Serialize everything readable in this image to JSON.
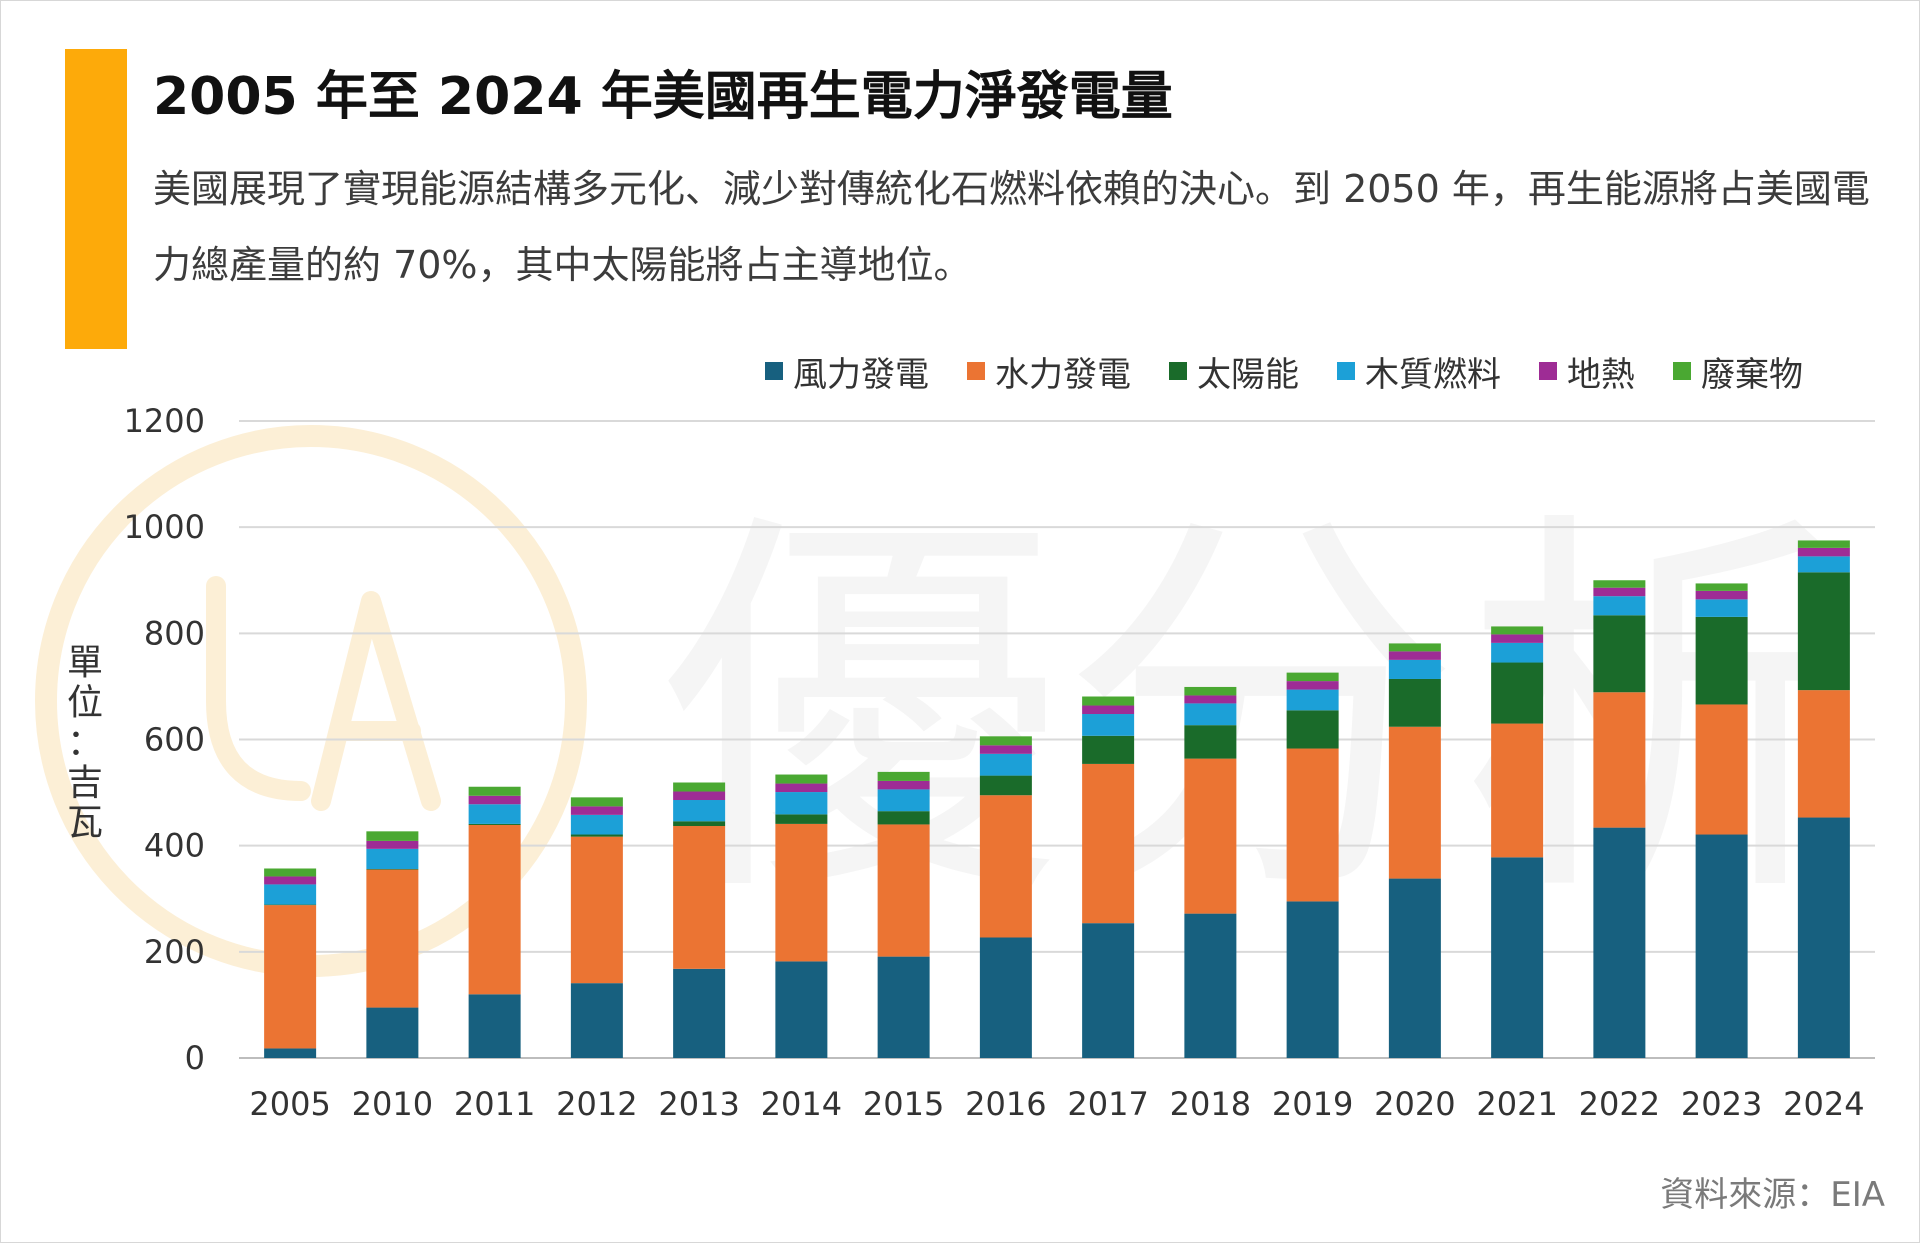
{
  "header": {
    "title": "2005 年至 2024 年美國再生電力淨發電量",
    "subtitle": "美國展現了實現能源結構多元化、減少對傳統化石燃料依賴的決心。到 2050 年，再生能源將占美國電力總產量的約 70%，其中太陽能將占主導地位。",
    "accent_color": "#FDAA0A"
  },
  "watermark": {
    "text": "優分析",
    "color": "#F5F5F5",
    "logo_color": "#FCEFD6"
  },
  "footer": {
    "source": "資料來源：EIA"
  },
  "chart_data": {
    "type": "bar",
    "stacked": true,
    "title": "",
    "xlabel": "",
    "ylabel": "單位：吉瓦",
    "ylim": [
      0,
      1200
    ],
    "yticks": [
      0,
      200,
      400,
      600,
      800,
      1000,
      1200
    ],
    "grid": true,
    "legend_position": "top-right",
    "categories": [
      "2005",
      "2010",
      "2011",
      "2012",
      "2013",
      "2014",
      "2015",
      "2016",
      "2017",
      "2018",
      "2019",
      "2020",
      "2021",
      "2022",
      "2023",
      "2024"
    ],
    "series": [
      {
        "name": "風力發電",
        "color": "#17607F",
        "values": [
          18,
          95,
          120,
          141,
          168,
          182,
          191,
          227,
          254,
          272,
          295,
          338,
          378,
          434,
          421,
          453
        ]
      },
      {
        "name": "水力發電",
        "color": "#EB7433",
        "values": [
          270,
          260,
          319,
          276,
          269,
          259,
          249,
          268,
          300,
          292,
          288,
          286,
          252,
          255,
          245,
          240
        ]
      },
      {
        "name": "太陽能",
        "color": "#1A6B2A",
        "values": [
          1,
          1,
          2,
          4,
          9,
          18,
          25,
          37,
          53,
          63,
          72,
          90,
          115,
          145,
          165,
          222
        ]
      },
      {
        "name": "木質燃料",
        "color": "#1CA0D7",
        "values": [
          38,
          38,
          37,
          37,
          40,
          42,
          41,
          41,
          41,
          41,
          39,
          36,
          37,
          36,
          33,
          30
        ]
      },
      {
        "name": "地熱",
        "color": "#9E2C95",
        "values": [
          15,
          15,
          16,
          16,
          16,
          16,
          16,
          16,
          16,
          15,
          16,
          16,
          16,
          16,
          16,
          16
        ]
      },
      {
        "name": "廢棄物",
        "color": "#4AA832",
        "values": [
          15,
          18,
          17,
          17,
          17,
          17,
          17,
          17,
          17,
          16,
          16,
          15,
          15,
          14,
          14,
          14
        ]
      }
    ]
  }
}
